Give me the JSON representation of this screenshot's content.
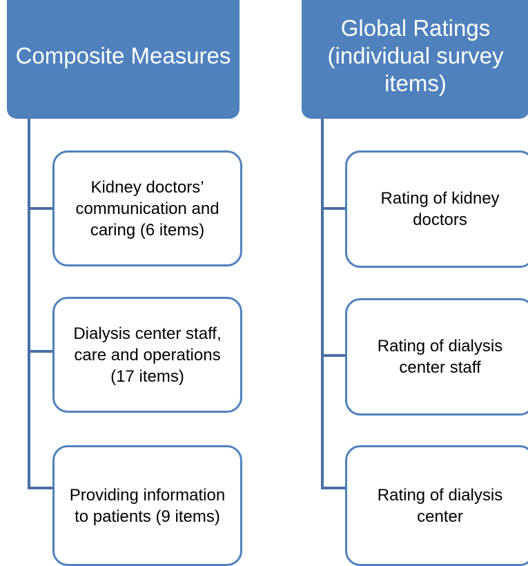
{
  "columns": [
    {
      "title": "Composite Measures",
      "items": [
        "Kidney doctors’ communication and caring (6 items)",
        "Dialysis center staff, care and operations (17 items)",
        "Providing information to patients (9 items)"
      ]
    },
    {
      "title": "Global Ratings (individual survey items)",
      "items": [
        "Rating of kidney doctors",
        "Rating of dialysis center staff",
        "Rating of dialysis center"
      ]
    }
  ]
}
